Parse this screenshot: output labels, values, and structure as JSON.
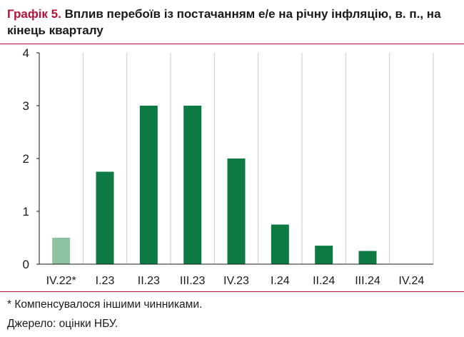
{
  "title": {
    "label": "Графік 5.",
    "text": "Вплив перебоїв із постачанням е/е на річну інфляцію, в. п., на кінець кварталу"
  },
  "footnote": "* Компенсувалося іншими чинниками.",
  "source": "Джерело: оцінки НБУ.",
  "colors": {
    "accent": "#b5123a",
    "bar": "#0d7a44",
    "bar_compensated": "#8fc2a0",
    "grid": "#c9c9c9"
  },
  "chart_data": {
    "type": "bar",
    "title": "Вплив перебоїв із постачанням е/е на річну інфляцію, в. п., на кінець кварталу",
    "xlabel": "",
    "ylabel": "",
    "categories": [
      "IV.22*",
      "I.23",
      "II.23",
      "III.23",
      "IV.23",
      "I.24",
      "II.24",
      "III.24",
      "IV.24"
    ],
    "values": [
      0.5,
      1.75,
      3.0,
      3.0,
      2.0,
      0.75,
      0.35,
      0.25,
      0
    ],
    "ylim": [
      0,
      4
    ],
    "yticks": [
      "0",
      "1",
      "2",
      "3",
      "4"
    ],
    "grid": "vertical",
    "highlight_first": true
  }
}
